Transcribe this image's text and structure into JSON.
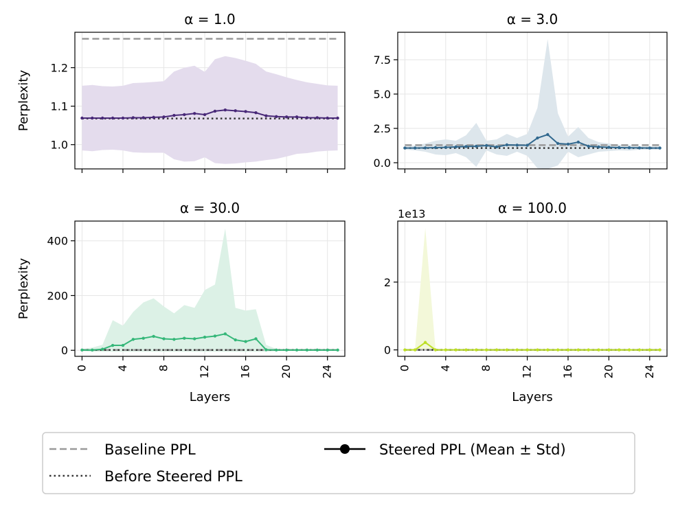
{
  "legend": {
    "baseline": "Baseline PPL",
    "before": "Before Steered PPL",
    "steered": "Steered PPL (Mean ± Std)"
  },
  "chart_data": [
    {
      "type": "line",
      "title": "α = 1.0",
      "ylabel": "Perplexity",
      "xlabel": "",
      "xlim": [
        -0.7,
        25.7
      ],
      "ylim": [
        0.937,
        1.292
      ],
      "xticks": [
        0,
        4,
        8,
        12,
        16,
        20,
        24
      ],
      "show_xticklabels": false,
      "yticks": [
        1.0,
        1.1,
        1.2
      ],
      "ytick_labels": [
        "1.0",
        "1.1",
        "1.2"
      ],
      "baseline": 1.275,
      "before": 1.068,
      "color": "#482878",
      "band_color": "#e4dced",
      "x": [
        0,
        1,
        2,
        3,
        4,
        5,
        6,
        7,
        8,
        9,
        10,
        11,
        12,
        13,
        14,
        15,
        16,
        17,
        18,
        19,
        20,
        21,
        22,
        23,
        24,
        25
      ],
      "mean": [
        1.069,
        1.069,
        1.069,
        1.069,
        1.069,
        1.07,
        1.07,
        1.071,
        1.072,
        1.076,
        1.078,
        1.081,
        1.078,
        1.087,
        1.09,
        1.088,
        1.086,
        1.083,
        1.075,
        1.073,
        1.072,
        1.072,
        1.07,
        1.07,
        1.069,
        1.069
      ],
      "upper": [
        1.153,
        1.155,
        1.152,
        1.151,
        1.153,
        1.16,
        1.161,
        1.163,
        1.165,
        1.19,
        1.2,
        1.205,
        1.189,
        1.222,
        1.23,
        1.225,
        1.218,
        1.21,
        1.19,
        1.183,
        1.175,
        1.168,
        1.162,
        1.158,
        1.154,
        1.153
      ],
      "lower": [
        0.985,
        0.983,
        0.986,
        0.987,
        0.985,
        0.98,
        0.979,
        0.979,
        0.979,
        0.962,
        0.956,
        0.957,
        0.967,
        0.952,
        0.95,
        0.951,
        0.954,
        0.956,
        0.96,
        0.963,
        0.969,
        0.976,
        0.978,
        0.982,
        0.984,
        0.985
      ]
    },
    {
      "type": "line",
      "title": "α = 3.0",
      "ylabel": "",
      "xlabel": "",
      "xlim": [
        -0.7,
        25.7
      ],
      "ylim": [
        -0.45,
        9.5
      ],
      "xticks": [
        0,
        4,
        8,
        12,
        16,
        20,
        24
      ],
      "show_xticklabels": false,
      "yticks": [
        0,
        2.5,
        5.0,
        7.5
      ],
      "ytick_labels": [
        "0.0",
        "2.5",
        "5.0",
        "7.5"
      ],
      "baseline": 1.28,
      "before": 1.07,
      "color": "#31688e",
      "band_color": "#dde6ec",
      "x": [
        0,
        1,
        2,
        3,
        4,
        5,
        6,
        7,
        8,
        9,
        10,
        11,
        12,
        13,
        14,
        15,
        16,
        17,
        18,
        19,
        20,
        21,
        22,
        23,
        24,
        25
      ],
      "mean": [
        1.07,
        1.07,
        1.08,
        1.1,
        1.12,
        1.15,
        1.18,
        1.2,
        1.25,
        1.15,
        1.3,
        1.28,
        1.27,
        1.8,
        2.05,
        1.4,
        1.35,
        1.5,
        1.2,
        1.15,
        1.12,
        1.1,
        1.09,
        1.08,
        1.07,
        1.07
      ],
      "upper": [
        1.2,
        1.25,
        1.4,
        1.6,
        1.7,
        1.6,
        2.0,
        2.9,
        1.6,
        1.7,
        2.1,
        1.8,
        2.1,
        4.0,
        9.0,
        3.6,
        1.9,
        2.6,
        1.8,
        1.5,
        1.4,
        1.3,
        1.3,
        1.2,
        1.2,
        1.2
      ],
      "lower": [
        0.95,
        0.9,
        0.8,
        0.6,
        0.55,
        0.7,
        0.4,
        -0.3,
        0.9,
        0.6,
        0.5,
        0.8,
        0.5,
        -0.4,
        -0.45,
        -0.2,
        0.8,
        0.4,
        0.6,
        0.8,
        0.85,
        0.9,
        0.88,
        0.95,
        0.95,
        0.95
      ]
    },
    {
      "type": "line",
      "title": "α = 30.0",
      "ylabel": "Perplexity",
      "xlabel": "Layers",
      "xlim": [
        -0.7,
        25.7
      ],
      "ylim": [
        -22,
        472
      ],
      "xticks": [
        0,
        4,
        8,
        12,
        16,
        20,
        24
      ],
      "show_xticklabels": true,
      "yticks": [
        0,
        200,
        400
      ],
      "ytick_labels": [
        "0",
        "200",
        "400"
      ],
      "baseline": 1.3,
      "before": 1.07,
      "color": "#35b779",
      "band_color": "#dcf1e6",
      "x": [
        0,
        1,
        2,
        3,
        4,
        5,
        6,
        7,
        8,
        9,
        10,
        11,
        12,
        13,
        14,
        15,
        16,
        17,
        18,
        19,
        20,
        21,
        22,
        23,
        24,
        25
      ],
      "mean": [
        1,
        1,
        4,
        18,
        18,
        40,
        44,
        51,
        42,
        40,
        44,
        42,
        48,
        52,
        60,
        38,
        32,
        42,
        2,
        1,
        1,
        1,
        1,
        1,
        1,
        1
      ],
      "upper": [
        5,
        10,
        20,
        110,
        90,
        140,
        175,
        190,
        160,
        135,
        165,
        155,
        220,
        240,
        445,
        155,
        145,
        150,
        20,
        5,
        3,
        3,
        3,
        3,
        3,
        3
      ],
      "lower": [
        -3,
        -5,
        -5,
        -5,
        -5,
        -5,
        -5,
        -5,
        -5,
        -5,
        -5,
        -5,
        -5,
        -5,
        -5,
        -5,
        -5,
        -5,
        -5,
        -3,
        -2,
        -2,
        -2,
        -2,
        -2,
        -2
      ]
    },
    {
      "type": "line",
      "title": "α = 100.0",
      "ylabel": "",
      "xlabel": "Layers",
      "offset_label": "1e13",
      "xlim": [
        -0.7,
        25.7
      ],
      "ylim": [
        -0.19,
        3.8
      ],
      "xticks": [
        0,
        4,
        8,
        12,
        16,
        20,
        24
      ],
      "show_xticklabels": true,
      "yticks": [
        0,
        2
      ],
      "ytick_labels": [
        "0",
        "2"
      ],
      "baseline": 0,
      "before": 0,
      "color": "#bddf26",
      "band_color": "#f3f8d9",
      "x": [
        0,
        1,
        2,
        3,
        4,
        5,
        6,
        7,
        8,
        9,
        10,
        11,
        12,
        13,
        14,
        15,
        16,
        17,
        18,
        19,
        20,
        21,
        22,
        23,
        24,
        25
      ],
      "mean": [
        0,
        0,
        0.22,
        0,
        0,
        0,
        0,
        0,
        0,
        0,
        0,
        0,
        0,
        0,
        0,
        0,
        0,
        0,
        0,
        0,
        0,
        0,
        0,
        0,
        0,
        0
      ],
      "upper": [
        0,
        0.05,
        3.6,
        0.03,
        0,
        0,
        0,
        0,
        0,
        0,
        0,
        0,
        0,
        0,
        0,
        0,
        0,
        0,
        0,
        0,
        0,
        0,
        0,
        0,
        0,
        0
      ],
      "lower": [
        0,
        0,
        0,
        0,
        0,
        0,
        0,
        0,
        0,
        0,
        0,
        0,
        0,
        0,
        0,
        0,
        0,
        0,
        0,
        0,
        0,
        0,
        0,
        0,
        0,
        0
      ]
    }
  ]
}
